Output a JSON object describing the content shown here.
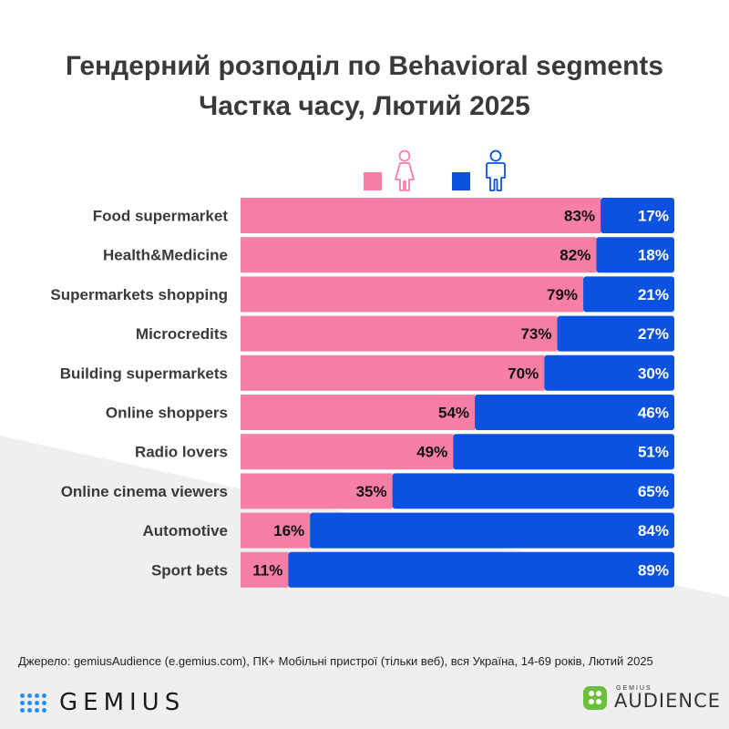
{
  "title": {
    "line1": "Гендерний розподіл по Behavioral segments",
    "line2": "Частка часу, Лютий 2025"
  },
  "legend": {
    "female_icon": "female-icon",
    "male_icon": "male-icon"
  },
  "colors": {
    "female": "#f77fa6",
    "male": "#0b52e0",
    "label_text": "#3a3a3a",
    "female_value_text": "#111111",
    "male_value_text": "#ffffff"
  },
  "chart_data": {
    "type": "bar",
    "orientation": "horizontal",
    "stacked": true,
    "percent_stacked": true,
    "title": "Гендерний розподіл по Behavioral segments — Частка часу, Лютий 2025",
    "categories": [
      "Food supermarket",
      "Health&Medicine",
      "Supermarkets shopping",
      "Microcredits",
      "Building supermarkets",
      "Online shoppers",
      "Radio lovers",
      "Online cinema viewers",
      "Automotive",
      "Sport bets"
    ],
    "series": [
      {
        "name": "female",
        "values": [
          83,
          82,
          79,
          73,
          70,
          54,
          49,
          35,
          16,
          11
        ],
        "labels": [
          "83%",
          "82%",
          "79%",
          "73%",
          "70%",
          "54%",
          "49%",
          "35%",
          "16%",
          "11%"
        ]
      },
      {
        "name": "male",
        "values": [
          17,
          18,
          21,
          27,
          30,
          46,
          51,
          65,
          84,
          89
        ],
        "labels": [
          "17%",
          "18%",
          "21%",
          "27%",
          "30%",
          "46%",
          "51%",
          "65%",
          "84%",
          "89%"
        ]
      }
    ],
    "xlim": [
      0,
      100
    ],
    "grid": false,
    "legend_position": "top"
  },
  "footer": {
    "source": "Джерело: gemiusAudience (e.gemius.com), ПК+ Мобільні пристрої (тільки веб), вся Україна, 14-69 років, Лютий 2025",
    "logo_left": "GEMIUS",
    "logo_right_small": "GEMIUS",
    "logo_right_big": "AUDIENCE"
  }
}
